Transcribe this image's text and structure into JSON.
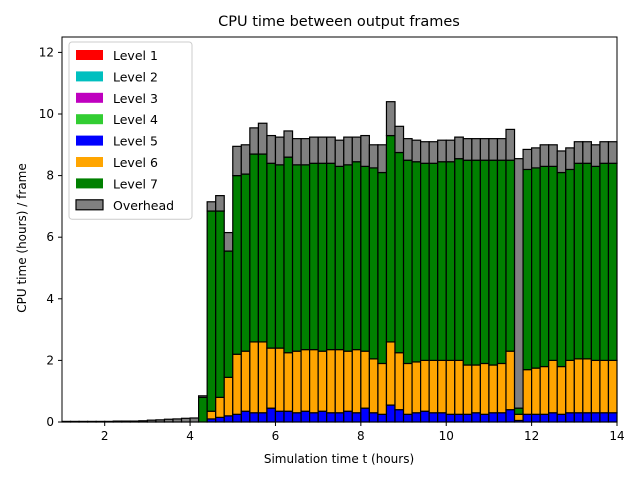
{
  "chart_data": {
    "type": "bar",
    "title": "CPU time between output frames",
    "xlabel": "Simulation time t (hours)",
    "ylabel": "CPU time (hours) / frame",
    "xlim": [
      1,
      14
    ],
    "ylim": [
      0,
      12.5
    ],
    "xticks": [
      2,
      4,
      6,
      8,
      10,
      12,
      14
    ],
    "yticks": [
      0,
      2,
      4,
      6,
      8,
      10,
      12
    ],
    "grid": false,
    "legend_position": "top-left",
    "stacked": true,
    "x": [
      1.1,
      1.3,
      1.5,
      1.7,
      1.9,
      2.1,
      2.3,
      2.5,
      2.7,
      2.9,
      3.1,
      3.3,
      3.5,
      3.7,
      3.9,
      4.1,
      4.3,
      4.5,
      4.7,
      4.9,
      5.1,
      5.3,
      5.5,
      5.7,
      5.9,
      6.1,
      6.3,
      6.5,
      6.7,
      6.9,
      7.1,
      7.3,
      7.5,
      7.7,
      7.9,
      8.1,
      8.3,
      8.5,
      8.7,
      8.9,
      9.1,
      9.3,
      9.5,
      9.7,
      9.9,
      10.1,
      10.3,
      10.5,
      10.7,
      10.9,
      11.1,
      11.3,
      11.5,
      11.7,
      11.9,
      12.1,
      12.3,
      12.5,
      12.7,
      12.9,
      13.1,
      13.3,
      13.5,
      13.7,
      13.9
    ],
    "bar_width": 0.2,
    "series": [
      {
        "name": "Level 1",
        "color": "#ff0000",
        "values": [
          0,
          0,
          0,
          0,
          0,
          0,
          0,
          0,
          0,
          0,
          0,
          0,
          0,
          0,
          0,
          0,
          0,
          0,
          0,
          0,
          0,
          0,
          0,
          0,
          0,
          0,
          0,
          0,
          0,
          0,
          0,
          0,
          0,
          0,
          0,
          0,
          0,
          0,
          0,
          0,
          0,
          0,
          0,
          0,
          0,
          0,
          0,
          0,
          0,
          0,
          0,
          0,
          0,
          0,
          0,
          0,
          0,
          0,
          0,
          0,
          0,
          0,
          0,
          0,
          0
        ]
      },
      {
        "name": "Level 2",
        "color": "#00bfbf",
        "values": [
          0,
          0,
          0,
          0,
          0,
          0,
          0,
          0,
          0,
          0,
          0,
          0,
          0,
          0,
          0,
          0,
          0,
          0,
          0,
          0,
          0,
          0,
          0,
          0,
          0,
          0,
          0,
          0,
          0,
          0,
          0,
          0,
          0,
          0,
          0,
          0,
          0,
          0,
          0,
          0,
          0,
          0,
          0,
          0,
          0,
          0,
          0,
          0,
          0,
          0,
          0,
          0,
          0,
          0,
          0,
          0,
          0,
          0,
          0,
          0,
          0,
          0,
          0,
          0,
          0
        ]
      },
      {
        "name": "Level 3",
        "color": "#bf00bf",
        "values": [
          0,
          0,
          0,
          0,
          0,
          0,
          0,
          0,
          0,
          0,
          0,
          0,
          0,
          0,
          0,
          0,
          0,
          0,
          0,
          0,
          0,
          0,
          0,
          0,
          0,
          0,
          0,
          0,
          0,
          0,
          0,
          0,
          0,
          0,
          0,
          0,
          0,
          0,
          0,
          0,
          0,
          0,
          0,
          0,
          0,
          0,
          0,
          0,
          0,
          0,
          0,
          0,
          0,
          0,
          0,
          0,
          0,
          0,
          0,
          0,
          0,
          0,
          0,
          0,
          0
        ]
      },
      {
        "name": "Level 4",
        "color": "#32cd32",
        "values": [
          0,
          0,
          0,
          0,
          0,
          0,
          0,
          0,
          0,
          0,
          0,
          0,
          0,
          0,
          0,
          0,
          0,
          0,
          0,
          0,
          0,
          0,
          0,
          0,
          0,
          0,
          0,
          0,
          0,
          0,
          0,
          0,
          0,
          0,
          0,
          0,
          0,
          0,
          0,
          0,
          0,
          0,
          0,
          0,
          0,
          0,
          0,
          0,
          0,
          0,
          0,
          0,
          0,
          0,
          0,
          0,
          0,
          0,
          0,
          0,
          0,
          0,
          0,
          0,
          0
        ]
      },
      {
        "name": "Level 5",
        "color": "#0000ff",
        "values": [
          0,
          0,
          0,
          0,
          0,
          0,
          0,
          0,
          0,
          0,
          0,
          0,
          0,
          0,
          0,
          0,
          0,
          0.1,
          0.15,
          0.2,
          0.25,
          0.35,
          0.3,
          0.3,
          0.45,
          0.35,
          0.35,
          0.3,
          0.35,
          0.3,
          0.35,
          0.3,
          0.3,
          0.35,
          0.3,
          0.45,
          0.3,
          0.25,
          0.55,
          0.4,
          0.25,
          0.3,
          0.35,
          0.3,
          0.3,
          0.25,
          0.25,
          0.25,
          0.3,
          0.25,
          0.3,
          0.3,
          0.4,
          0.05,
          0.25,
          0.25,
          0.25,
          0.3,
          0.25,
          0.3,
          0.3,
          0.3,
          0.3,
          0.3,
          0.3
        ]
      },
      {
        "name": "Level 6",
        "color": "#ffa500",
        "values": [
          0,
          0,
          0,
          0,
          0,
          0,
          0,
          0,
          0,
          0,
          0,
          0,
          0,
          0,
          0,
          0,
          0,
          0.25,
          0.65,
          1.25,
          1.95,
          1.95,
          2.3,
          2.3,
          1.95,
          2.05,
          1.9,
          2.0,
          2.0,
          2.05,
          1.95,
          2.05,
          2.05,
          1.95,
          2.05,
          1.85,
          1.75,
          1.65,
          2.05,
          1.85,
          1.65,
          1.65,
          1.65,
          1.7,
          1.7,
          1.75,
          1.75,
          1.6,
          1.55,
          1.65,
          1.55,
          1.6,
          1.9,
          0.2,
          1.45,
          1.5,
          1.55,
          1.7,
          1.55,
          1.7,
          1.75,
          1.75,
          1.7,
          1.7,
          1.7
        ]
      },
      {
        "name": "Level 7",
        "color": "#008000",
        "values": [
          0,
          0,
          0,
          0,
          0,
          0,
          0,
          0,
          0,
          0,
          0,
          0,
          0,
          0,
          0,
          0,
          0.8,
          6.5,
          6.05,
          4.1,
          5.8,
          5.75,
          6.1,
          6.1,
          6.0,
          5.95,
          6.35,
          6.05,
          6.0,
          6.05,
          6.1,
          6.05,
          5.95,
          6.05,
          6.1,
          6.0,
          6.2,
          6.2,
          6.7,
          6.5,
          6.6,
          6.5,
          6.4,
          6.4,
          6.45,
          6.45,
          6.55,
          6.65,
          6.65,
          6.6,
          6.65,
          6.6,
          6.2,
          0.2,
          6.5,
          6.5,
          6.5,
          6.3,
          6.3,
          6.2,
          6.35,
          6.35,
          6.3,
          6.4,
          6.4
        ]
      },
      {
        "name": "Overhead",
        "color": "#808080",
        "values": [
          0.02,
          0.02,
          0.02,
          0.02,
          0.02,
          0.02,
          0.03,
          0.03,
          0.03,
          0.04,
          0.06,
          0.07,
          0.09,
          0.1,
          0.12,
          0.13,
          0.05,
          0.3,
          0.5,
          0.6,
          0.95,
          0.95,
          0.85,
          1.0,
          0.9,
          0.9,
          0.85,
          0.85,
          0.85,
          0.85,
          0.85,
          0.85,
          0.85,
          0.9,
          0.8,
          1.0,
          0.75,
          0.9,
          1.1,
          0.85,
          0.7,
          0.7,
          0.7,
          0.7,
          0.7,
          0.7,
          0.7,
          0.7,
          0.7,
          0.7,
          0.7,
          0.7,
          1.0,
          8.1,
          0.65,
          0.65,
          0.7,
          0.7,
          0.7,
          0.7,
          0.7,
          0.7,
          0.7,
          0.7,
          0.7
        ]
      }
    ]
  }
}
